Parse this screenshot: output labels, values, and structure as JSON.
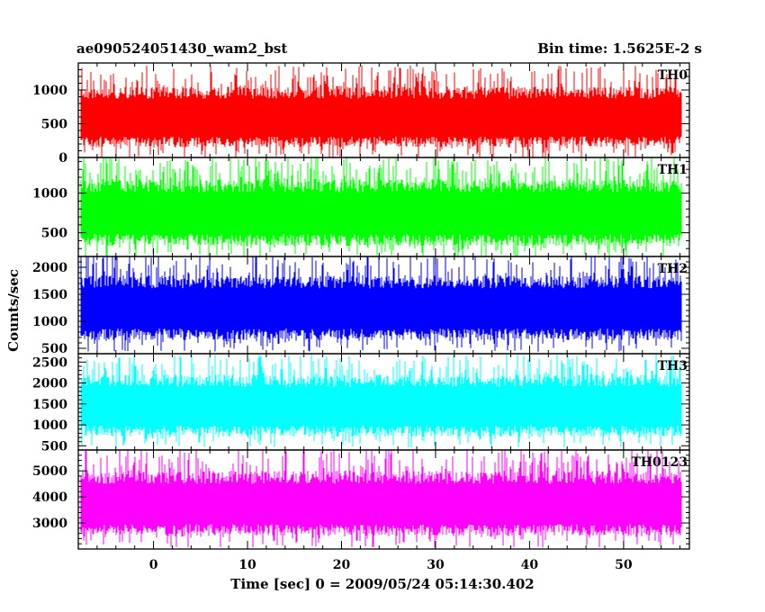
{
  "chart_data": {
    "type": "line",
    "title_left": "ae090524051430_wam2_bst",
    "title_right": "Bin time: 1.5625E-2 s",
    "xlabel": "Time [sec] 0 = 2009/05/24 05:14:30.402",
    "ylabel": "Counts/sec",
    "xlim": [
      -8,
      57
    ],
    "data_x_range": [
      -7.7,
      56.1
    ],
    "xticks": [
      0,
      10,
      20,
      30,
      40,
      50
    ],
    "x_minor_step": 2,
    "panels": [
      {
        "name": "TH0",
        "color": "#ff0000",
        "ylim": [
          0,
          1400
        ],
        "yticks": [
          0,
          500,
          1000
        ],
        "y_minor_step": 100,
        "band_low": 150,
        "band_high": 1050,
        "mean": 560
      },
      {
        "name": "TH1",
        "color": "#00ff00",
        "ylim": [
          200,
          1450
        ],
        "yticks": [
          500,
          1000
        ],
        "y_minor_step": 100,
        "band_low": 330,
        "band_high": 1180,
        "mean": 700
      },
      {
        "name": "TH2",
        "color": "#0000ff",
        "ylim": [
          400,
          2200
        ],
        "yticks": [
          500,
          1000,
          1500,
          2000
        ],
        "y_minor_step": 100,
        "band_low": 650,
        "band_high": 1850,
        "mean": 1150
      },
      {
        "name": "TH3",
        "color": "#00ffff",
        "ylim": [
          400,
          2700
        ],
        "yticks": [
          500,
          1000,
          1500,
          2000,
          2500
        ],
        "y_minor_step": 100,
        "band_low": 720,
        "band_high": 2200,
        "mean": 1550
      },
      {
        "name": "TH0123",
        "color": "#ff00ff",
        "ylim": [
          2000,
          5800
        ],
        "yticks": [
          3000,
          4000,
          5000
        ],
        "y_minor_step": 200,
        "band_low": 2500,
        "band_high": 5000,
        "mean": 3900
      }
    ]
  }
}
